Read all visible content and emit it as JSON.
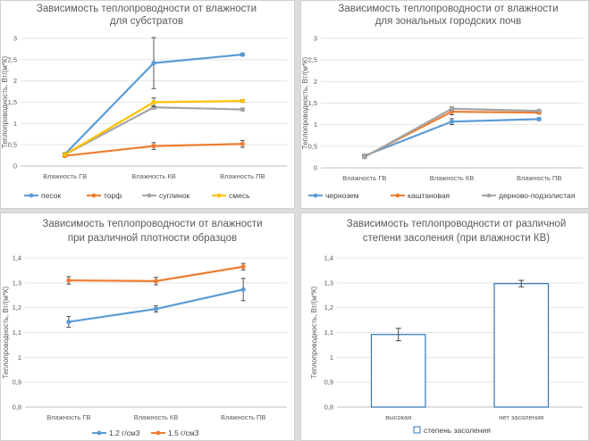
{
  "chart_data": [
    {
      "type": "line",
      "title": [
        "Зависимость теплопроводности от влажности",
        "для субстратов"
      ],
      "ylabel": "Теплопроводность, Вт/(м*К)",
      "xlabel": "",
      "categories": [
        "Влажность ГВ",
        "Влажность КВ",
        "Влажность ПВ"
      ],
      "ylim": [
        0,
        3
      ],
      "yticks": [
        0,
        0.5,
        1,
        1.5,
        2,
        2.5,
        3
      ],
      "ytick_labels": [
        "0",
        "0,5",
        "1",
        "1,5",
        "2",
        "2,5",
        "3"
      ],
      "legend_position": "bottom",
      "series": [
        {
          "name": "песок",
          "color": "#5b9bd5",
          "values": [
            0.28,
            2.42,
            2.62
          ],
          "errors": [
            0.03,
            0.6,
            0.03
          ]
        },
        {
          "name": "торф",
          "color": "#ed7d31",
          "values": [
            0.24,
            0.47,
            0.52
          ],
          "errors": [
            0.03,
            0.08,
            0.08
          ]
        },
        {
          "name": "суглинок",
          "color": "#a5a5a5",
          "values": [
            0.27,
            1.38,
            1.33
          ],
          "errors": [
            0.03,
            0.04,
            0.03
          ]
        },
        {
          "name": "смесь",
          "color": "#ffc000",
          "values": [
            0.27,
            1.5,
            1.53
          ],
          "errors": [
            0.03,
            0.1,
            0.03
          ]
        }
      ]
    },
    {
      "type": "line",
      "title": [
        "Зависимость теплопроводности от влажности",
        "для зональных городских почв"
      ],
      "ylabel": "Теплопроводность, Вт/(м*К)",
      "xlabel": "",
      "categories": [
        "Влажность ГВ",
        "Влажность КВ",
        "Влажность ПВ"
      ],
      "ylim": [
        0,
        3
      ],
      "yticks": [
        0,
        0.5,
        1,
        1.5,
        2,
        2.5,
        3
      ],
      "ytick_labels": [
        "0",
        "0,5",
        "1",
        "1,5",
        "2",
        "2,5",
        "3"
      ],
      "legend_position": "bottom",
      "series": [
        {
          "name": "чернозем",
          "color": "#5b9bd5",
          "values": [
            0.28,
            1.07,
            1.13
          ],
          "errors": [
            0.03,
            0.07,
            0.03
          ]
        },
        {
          "name": "каштановая",
          "color": "#ed7d31",
          "values": [
            0.26,
            1.3,
            1.28
          ],
          "errors": [
            0.03,
            0.07,
            0.03
          ]
        },
        {
          "name": "дерново-подзолистая",
          "color": "#a5a5a5",
          "values": [
            0.25,
            1.37,
            1.32
          ],
          "errors": [
            0.03,
            0.04,
            0.03
          ]
        }
      ]
    },
    {
      "type": "line",
      "title": [
        "Зависимость теплопроводности от влажности",
        "при различной плотности образцов"
      ],
      "ylabel": "Теплопроводность, Вт/(м*К)",
      "xlabel": "",
      "categories": [
        "Влажность ГВ",
        "Влажность КВ",
        "Влажность ПВ"
      ],
      "ylim": [
        0.8,
        1.4
      ],
      "yticks": [
        0.8,
        0.9,
        1.0,
        1.1,
        1.2,
        1.3,
        1.4
      ],
      "ytick_labels": [
        "0,8",
        "0,9",
        "1",
        "1,1",
        "1,2",
        "1,3",
        "1,4"
      ],
      "legend_position": "bottom",
      "series": [
        {
          "name": "1.2 г/см3",
          "color": "#5b9bd5",
          "values": [
            1.143,
            1.195,
            1.273
          ],
          "errors": [
            0.022,
            0.012,
            0.045
          ]
        },
        {
          "name": "1.5 г/см3",
          "color": "#ed7d31",
          "values": [
            1.31,
            1.307,
            1.365
          ],
          "errors": [
            0.015,
            0.015,
            0.013
          ]
        }
      ]
    },
    {
      "type": "bar",
      "title": [
        "Зависимость теплопроводности от различной",
        "степени засоления (при влажности КВ)"
      ],
      "ylabel": "Теплопроводность, Вт/(м*К)",
      "xlabel": "",
      "categories": [
        "высокая",
        "нет засоления"
      ],
      "ylim": [
        0.8,
        1.4
      ],
      "yticks": [
        0.8,
        0.9,
        1.0,
        1.1,
        1.2,
        1.3,
        1.4
      ],
      "ytick_labels": [
        "0,8",
        "0,9",
        "1",
        "1,1",
        "1,2",
        "1,3",
        "1,4"
      ],
      "legend_position": "bottom",
      "series": [
        {
          "name": "степень засоления",
          "color": "#2e75b6",
          "values": [
            1.092,
            1.297
          ],
          "errors": [
            0.025,
            0.013
          ]
        }
      ]
    }
  ]
}
